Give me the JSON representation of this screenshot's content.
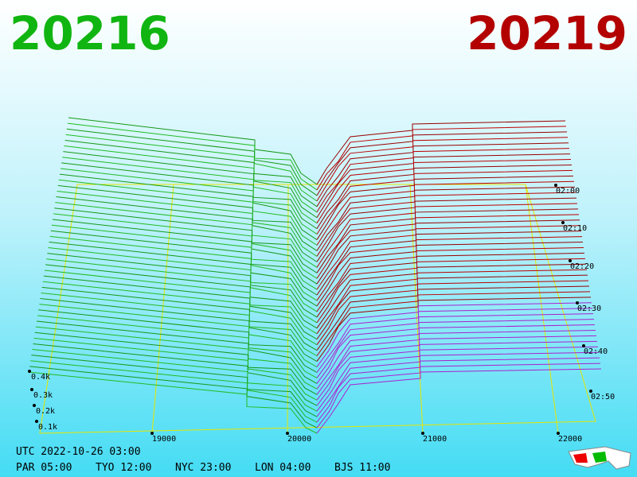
{
  "header": {
    "bid": "20216",
    "ask": "20219"
  },
  "axes": {
    "price_ticks": [
      "19000",
      "20000",
      "21000",
      "22000"
    ],
    "size_ticks": [
      "0.4k",
      "0.3k",
      "0.2k",
      "0.1k"
    ],
    "time_ticks": [
      "02:00",
      "02:10",
      "02:20",
      "02:30",
      "02:40",
      "02:50"
    ]
  },
  "footer": {
    "utc": "UTC 2022-10-26 03:00",
    "zones": [
      "PAR 05:00",
      "TYO 12:00",
      "NYC 23:00",
      "LON 04:00",
      "BJS 11:00"
    ]
  }
}
